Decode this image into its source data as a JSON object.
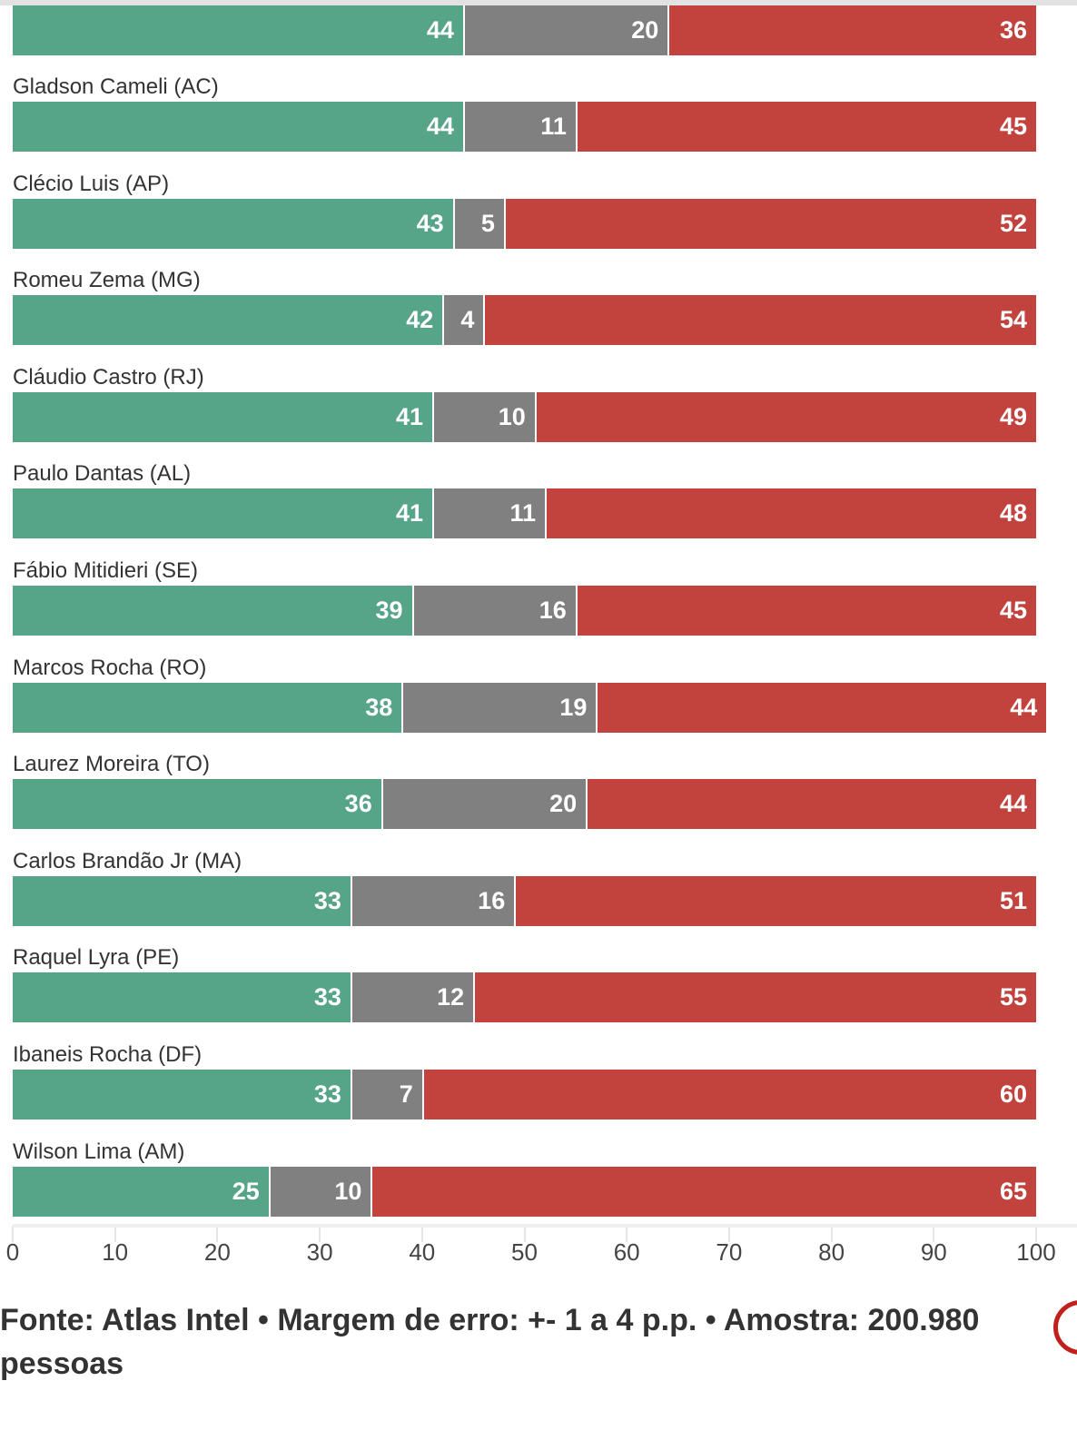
{
  "chart_data": {
    "type": "bar",
    "stacked": true,
    "orientation": "horizontal",
    "xlim": [
      0,
      100
    ],
    "ticks": [
      "0",
      "10",
      "20",
      "30",
      "40",
      "50",
      "60",
      "70",
      "80",
      "90",
      "100"
    ],
    "colors": {
      "approve": "#56a589",
      "neutral": "#808080",
      "disapprove": "#c2423d"
    },
    "rows": [
      {
        "label": "",
        "values": [
          44,
          20,
          36
        ]
      },
      {
        "label": "Gladson Cameli (AC)",
        "values": [
          44,
          11,
          45
        ]
      },
      {
        "label": "Clécio Luis (AP)",
        "values": [
          43,
          5,
          52
        ]
      },
      {
        "label": "Romeu Zema (MG)",
        "values": [
          42,
          4,
          54
        ]
      },
      {
        "label": "Cláudio Castro (RJ)",
        "values": [
          41,
          10,
          49
        ]
      },
      {
        "label": "Paulo Dantas (AL)",
        "values": [
          41,
          11,
          48
        ]
      },
      {
        "label": "Fábio Mitidieri (SE)",
        "values": [
          39,
          16,
          45
        ]
      },
      {
        "label": "Marcos Rocha (RO)",
        "values": [
          38,
          19,
          44
        ]
      },
      {
        "label": "Laurez Moreira (TO)",
        "values": [
          36,
          20,
          44
        ]
      },
      {
        "label": "Carlos Brandão Jr (MA)",
        "values": [
          33,
          16,
          51
        ]
      },
      {
        "label": "Raquel Lyra (PE)",
        "values": [
          33,
          12,
          55
        ]
      },
      {
        "label": "Ibaneis Rocha (DF)",
        "values": [
          33,
          7,
          60
        ]
      },
      {
        "label": "Wilson Lima (AM)",
        "values": [
          25,
          10,
          65
        ]
      }
    ]
  },
  "footer": {
    "source": "Fonte: Atlas Intel • Margem de erro: +- 1 a 4 p.p. • Amostra: 200.980 pessoas"
  }
}
